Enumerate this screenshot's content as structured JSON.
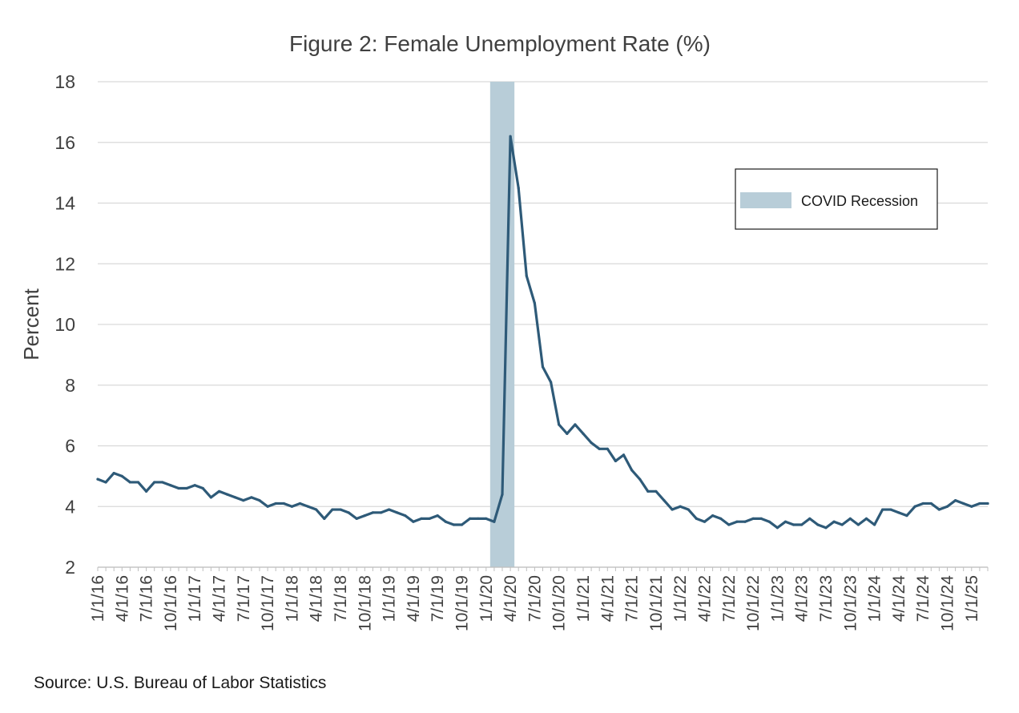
{
  "chart_data": {
    "type": "line",
    "title": "Figure 2: Female Unemployment Rate (%)",
    "xlabel": "",
    "ylabel": "Percent",
    "ylim": [
      2,
      18
    ],
    "yticks": [
      2,
      4,
      6,
      8,
      10,
      12,
      14,
      16,
      18
    ],
    "grid": true,
    "legend_placement": "top-right",
    "x_tick_labels": [
      "1/1/16",
      "4/1/16",
      "7/1/16",
      "10/1/16",
      "1/1/17",
      "4/1/17",
      "7/1/17",
      "10/1/17",
      "1/1/18",
      "4/1/18",
      "7/1/18",
      "10/1/18",
      "1/1/19",
      "4/1/19",
      "7/1/19",
      "10/1/19",
      "1/1/20",
      "4/1/20",
      "7/1/20",
      "10/1/20",
      "1/1/21",
      "4/1/21",
      "7/1/21",
      "10/1/21",
      "1/1/22",
      "4/1/22",
      "7/1/22",
      "10/1/22",
      "1/1/23",
      "4/1/23",
      "7/1/23",
      "10/1/23",
      "1/1/24",
      "4/1/24",
      "7/1/24",
      "10/1/24",
      "1/1/25"
    ],
    "x_start": "2016-01",
    "x_frequency": "monthly",
    "series": [
      {
        "name": "",
        "color": "#2e5a78",
        "values": [
          4.9,
          4.8,
          5.1,
          5.0,
          4.8,
          4.8,
          4.5,
          4.8,
          4.8,
          4.7,
          4.6,
          4.6,
          4.7,
          4.6,
          4.3,
          4.5,
          4.4,
          4.3,
          4.2,
          4.3,
          4.2,
          4.0,
          4.1,
          4.1,
          4.0,
          4.1,
          4.0,
          3.9,
          3.6,
          3.9,
          3.9,
          3.8,
          3.6,
          3.7,
          3.8,
          3.8,
          3.9,
          3.8,
          3.7,
          3.5,
          3.6,
          3.6,
          3.7,
          3.5,
          3.4,
          3.4,
          3.6,
          3.6,
          3.6,
          3.5,
          4.4,
          16.2,
          14.5,
          11.6,
          10.7,
          8.6,
          8.1,
          6.7,
          6.4,
          6.7,
          6.4,
          6.1,
          5.9,
          5.9,
          5.5,
          5.7,
          5.2,
          4.9,
          4.5,
          4.5,
          4.2,
          3.9,
          4.0,
          3.9,
          3.6,
          3.5,
          3.7,
          3.6,
          3.4,
          3.5,
          3.5,
          3.6,
          3.6,
          3.5,
          3.3,
          3.5,
          3.4,
          3.4,
          3.6,
          3.4,
          3.3,
          3.5,
          3.4,
          3.6,
          3.4,
          3.6,
          3.4,
          3.9,
          3.9,
          3.8,
          3.7,
          4.0,
          4.1,
          4.1,
          3.9,
          4.0,
          4.2,
          4.1,
          4.0,
          4.1,
          4.1
        ]
      }
    ],
    "recession_band": {
      "label": "COVID Recession",
      "start": "2020-02",
      "end": "2020-04",
      "color": "#b8cdd8"
    }
  },
  "footer": {
    "source": "Source: U.S. Bureau of Labor Statistics"
  }
}
